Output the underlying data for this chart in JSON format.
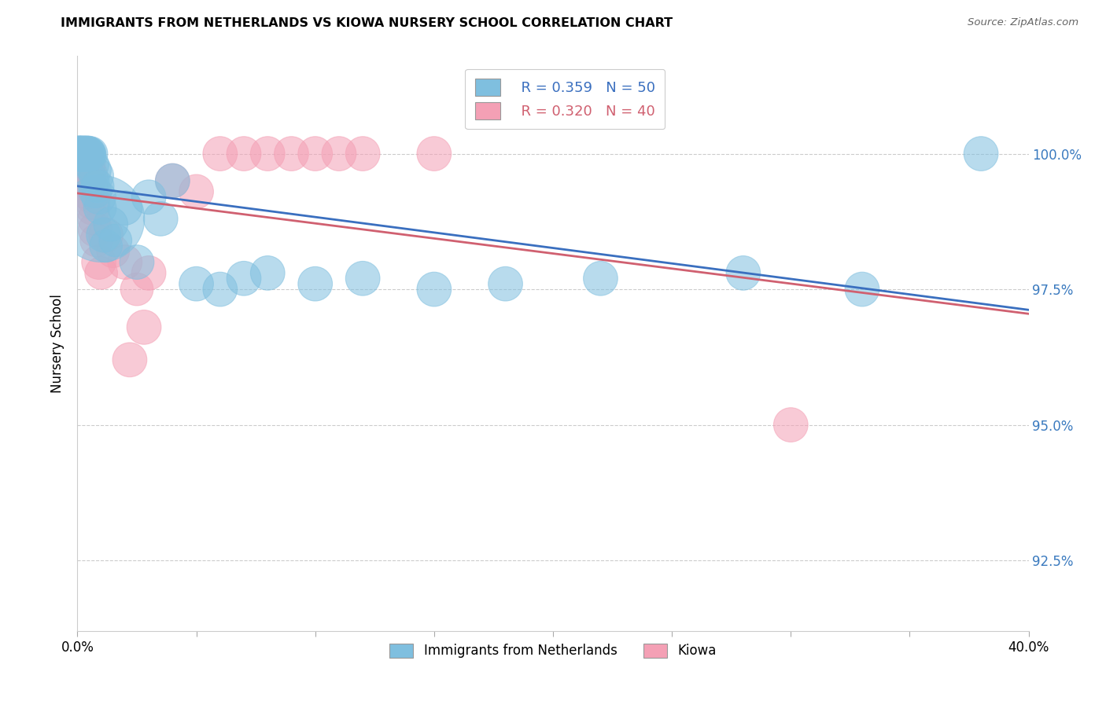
{
  "title": "IMMIGRANTS FROM NETHERLANDS VS KIOWA NURSERY SCHOOL CORRELATION CHART",
  "source": "Source: ZipAtlas.com",
  "ylabel": "Nursery School",
  "yticks": [
    92.5,
    95.0,
    97.5,
    100.0
  ],
  "ytick_labels": [
    "92.5%",
    "95.0%",
    "97.5%",
    "100.0%"
  ],
  "xmin": 0.0,
  "xmax": 40.0,
  "ymin": 91.2,
  "ymax": 101.8,
  "legend_blue_r": "R = 0.359",
  "legend_blue_n": "N = 50",
  "legend_pink_r": "R = 0.320",
  "legend_pink_n": "N = 40",
  "legend_label_blue": "Immigrants from Netherlands",
  "legend_label_pink": "Kiowa",
  "blue_color": "#7fbfdf",
  "pink_color": "#f4a0b5",
  "blue_line_color": "#3a6fbf",
  "pink_line_color": "#d06070",
  "blue_scatter": {
    "x": [
      0.05,
      0.08,
      0.1,
      0.12,
      0.15,
      0.18,
      0.2,
      0.22,
      0.25,
      0.28,
      0.3,
      0.33,
      0.35,
      0.38,
      0.4,
      0.42,
      0.45,
      0.48,
      0.5,
      0.55,
      0.6,
      0.65,
      0.7,
      0.75,
      0.8,
      0.85,
      0.9,
      0.95,
      1.0,
      1.1,
      1.2,
      1.4,
      1.6,
      2.0,
      2.5,
      3.0,
      3.5,
      4.0,
      5.0,
      6.0,
      7.0,
      8.0,
      10.0,
      12.0,
      15.0,
      18.0,
      22.0,
      28.0,
      33.0,
      38.0
    ],
    "y": [
      100.0,
      100.0,
      100.0,
      100.0,
      100.0,
      100.0,
      100.0,
      100.0,
      100.0,
      100.0,
      100.0,
      100.0,
      100.0,
      100.0,
      100.0,
      100.0,
      100.0,
      100.0,
      100.0,
      100.0,
      99.8,
      99.5,
      99.7,
      99.3,
      99.6,
      99.4,
      99.2,
      99.0,
      98.8,
      98.5,
      98.3,
      98.7,
      98.4,
      99.0,
      98.0,
      99.2,
      98.8,
      99.5,
      97.6,
      97.5,
      97.7,
      97.8,
      97.6,
      97.7,
      97.5,
      97.6,
      97.7,
      97.8,
      97.5,
      100.0
    ],
    "size": [
      60,
      55,
      50,
      55,
      50,
      55,
      60,
      55,
      50,
      55,
      50,
      55,
      50,
      55,
      60,
      55,
      50,
      55,
      50,
      55,
      55,
      50,
      55,
      50,
      55,
      50,
      55,
      50,
      350,
      55,
      50,
      55,
      50,
      55,
      55,
      55,
      55,
      55,
      55,
      55,
      55,
      55,
      55,
      55,
      55,
      55,
      55,
      55,
      55,
      55
    ]
  },
  "pink_scatter": {
    "x": [
      0.05,
      0.1,
      0.15,
      0.2,
      0.25,
      0.3,
      0.35,
      0.4,
      0.45,
      0.5,
      0.55,
      0.6,
      0.65,
      0.7,
      0.75,
      0.8,
      0.9,
      1.0,
      1.2,
      1.5,
      2.0,
      2.5,
      3.0,
      4.0,
      5.0,
      6.0,
      8.0,
      10.0,
      12.0,
      15.0,
      2.2,
      2.8,
      0.28,
      0.38,
      0.55,
      0.65,
      7.0,
      9.0,
      11.0,
      30.0
    ],
    "y": [
      100.0,
      100.0,
      100.0,
      100.0,
      100.0,
      100.0,
      100.0,
      100.0,
      99.8,
      99.6,
      99.4,
      99.2,
      99.0,
      98.8,
      98.6,
      98.4,
      98.0,
      97.8,
      98.5,
      98.2,
      98.0,
      97.5,
      97.8,
      99.5,
      99.3,
      100.0,
      100.0,
      100.0,
      100.0,
      100.0,
      96.2,
      96.8,
      99.5,
      99.3,
      99.6,
      99.1,
      100.0,
      100.0,
      100.0,
      95.0
    ],
    "size": [
      55,
      50,
      55,
      50,
      55,
      50,
      55,
      50,
      55,
      50,
      55,
      50,
      55,
      50,
      55,
      50,
      55,
      50,
      55,
      50,
      55,
      50,
      55,
      55,
      55,
      55,
      55,
      55,
      55,
      55,
      55,
      55,
      55,
      55,
      55,
      55,
      55,
      55,
      55,
      55
    ]
  }
}
